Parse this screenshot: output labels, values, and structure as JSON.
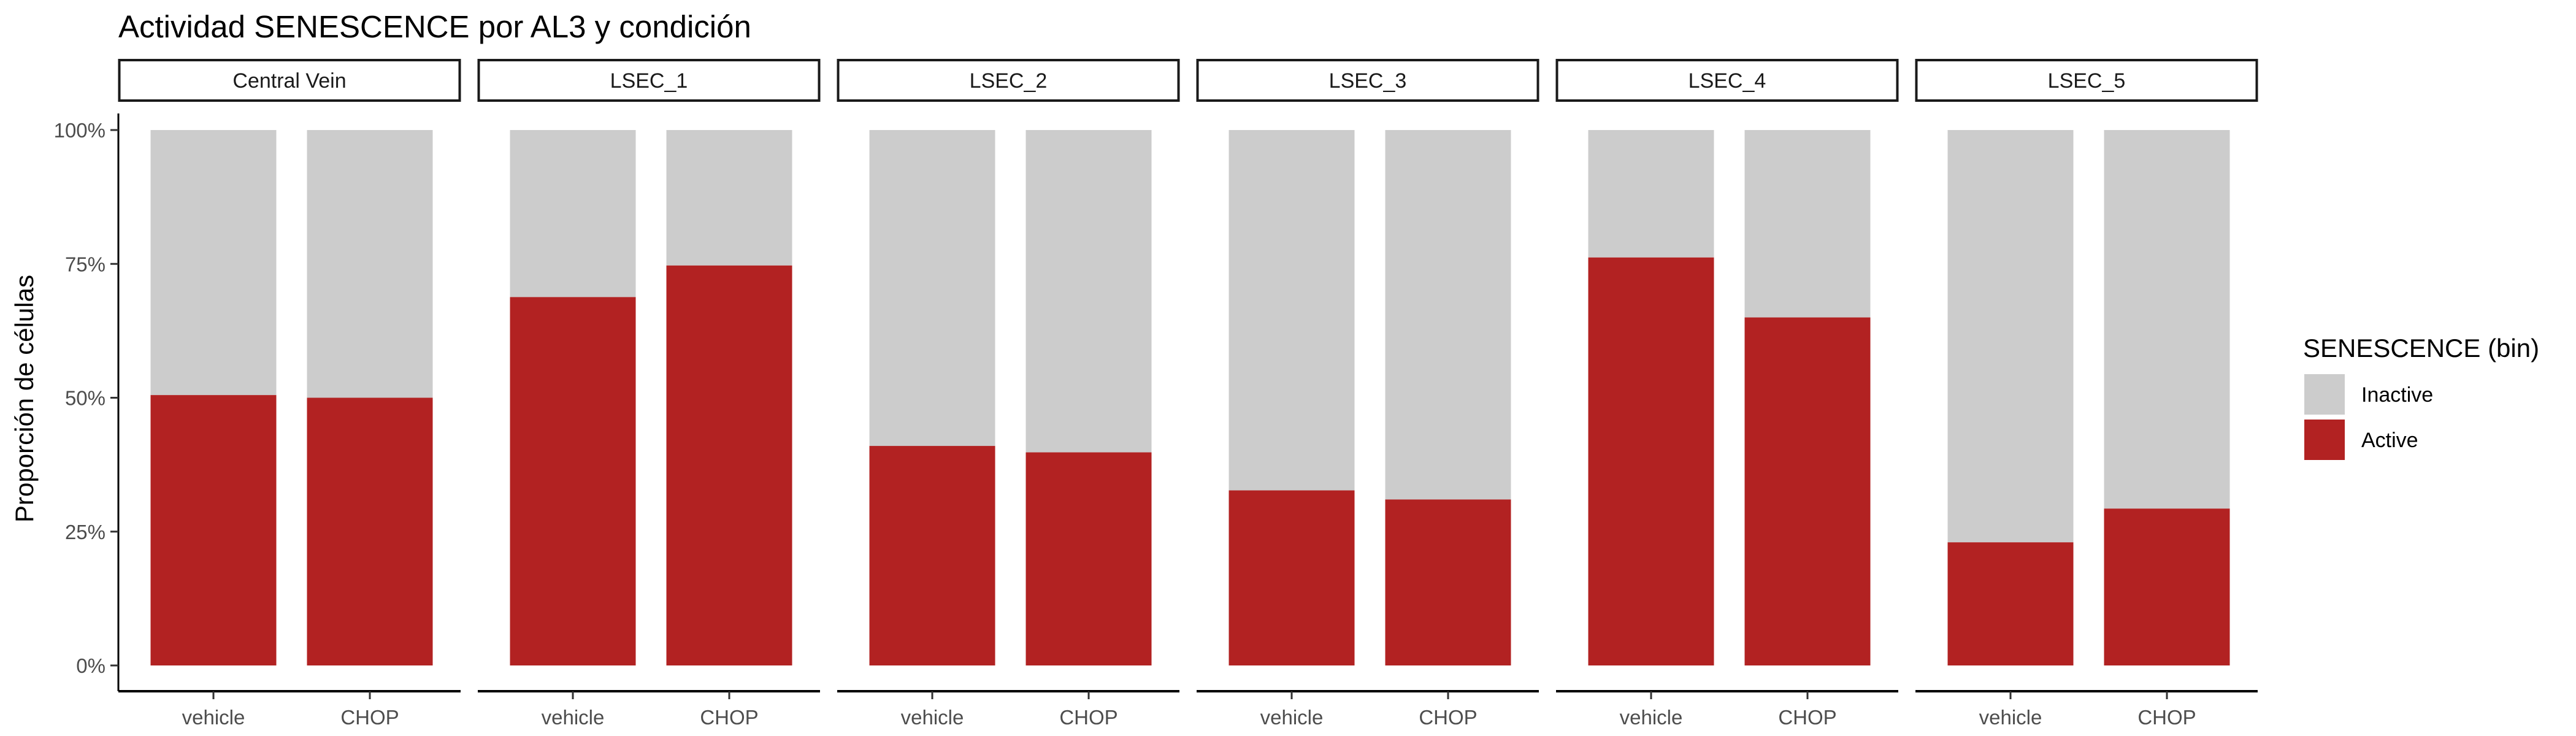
{
  "chart_data": {
    "type": "bar",
    "title": "Actividad SENESCENCE por AL3 y condición",
    "ylabel": "Proporción de células",
    "xlabel": "",
    "ylim": [
      0,
      1
    ],
    "y_ticks": [
      "0%",
      "25%",
      "50%",
      "75%",
      "100%"
    ],
    "y_tick_values": [
      0,
      0.25,
      0.5,
      0.75,
      1.0
    ],
    "stacked": true,
    "normalized": true,
    "facet_by": "AL3",
    "categories": [
      "vehicle",
      "CHOP"
    ],
    "legend": {
      "title": "SENESCENCE (bin)",
      "position": "right",
      "entries": [
        {
          "name": "Inactive",
          "color": "#CCCCCC"
        },
        {
          "name": "Active",
          "color": "#B22222"
        }
      ]
    },
    "facets": [
      {
        "name": "Central Vein",
        "active": [
          0.505,
          0.5
        ]
      },
      {
        "name": "LSEC_1",
        "active": [
          0.688,
          0.747
        ]
      },
      {
        "name": "LSEC_2",
        "active": [
          0.41,
          0.398
        ]
      },
      {
        "name": "LSEC_3",
        "active": [
          0.327,
          0.31
        ]
      },
      {
        "name": "LSEC_4",
        "active": [
          0.762,
          0.65
        ]
      },
      {
        "name": "LSEC_5",
        "active": [
          0.23,
          0.293
        ]
      }
    ],
    "grid": false
  }
}
